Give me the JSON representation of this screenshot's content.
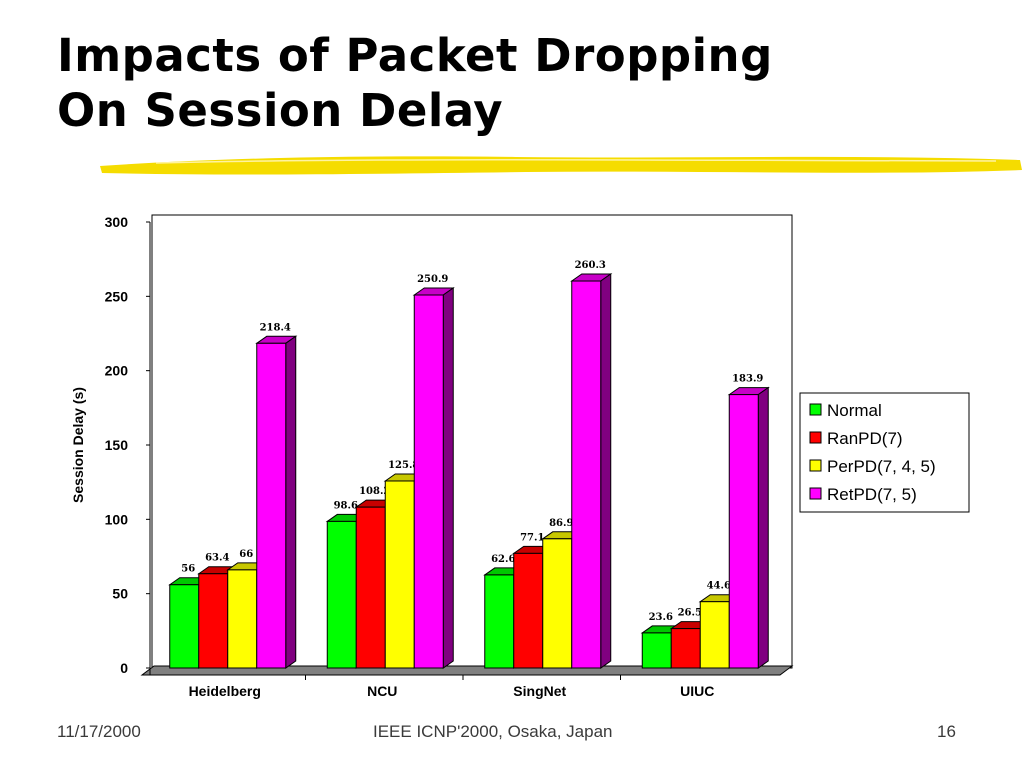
{
  "slide": {
    "title_line1": "Impacts of Packet Dropping",
    "title_line2": "On Session Delay",
    "footer_date": "11/17/2000",
    "footer_conference": "IEEE ICNP'2000, Osaka, Japan",
    "footer_page": "16",
    "accent_stroke_color": "#f5dc00"
  },
  "chart_data": {
    "type": "bar",
    "title": "",
    "xlabel": "",
    "ylabel": "Session Delay (s)",
    "ylim": [
      0,
      300
    ],
    "yticks": [
      0,
      50,
      100,
      150,
      200,
      250,
      300
    ],
    "grid": false,
    "three_d": true,
    "legend_position": "right",
    "categories": [
      "Heidelberg",
      "NCU",
      "SingNet",
      "UIUC"
    ],
    "series": [
      {
        "name": "Normal",
        "color": "#00ff00",
        "values": [
          56,
          98.6,
          62.6,
          23.6
        ]
      },
      {
        "name": "RanPD(7)",
        "color": "#ff0000",
        "values": [
          63.4,
          108.2,
          77.1,
          26.5
        ]
      },
      {
        "name": "PerPD(7, 4, 5)",
        "color": "#ffff00",
        "values": [
          66,
          125.8,
          86.9,
          44.6
        ]
      },
      {
        "name": "RetPD(7, 5)",
        "color": "#ff00ff",
        "values": [
          218.4,
          250.9,
          260.3,
          183.9
        ]
      }
    ]
  }
}
